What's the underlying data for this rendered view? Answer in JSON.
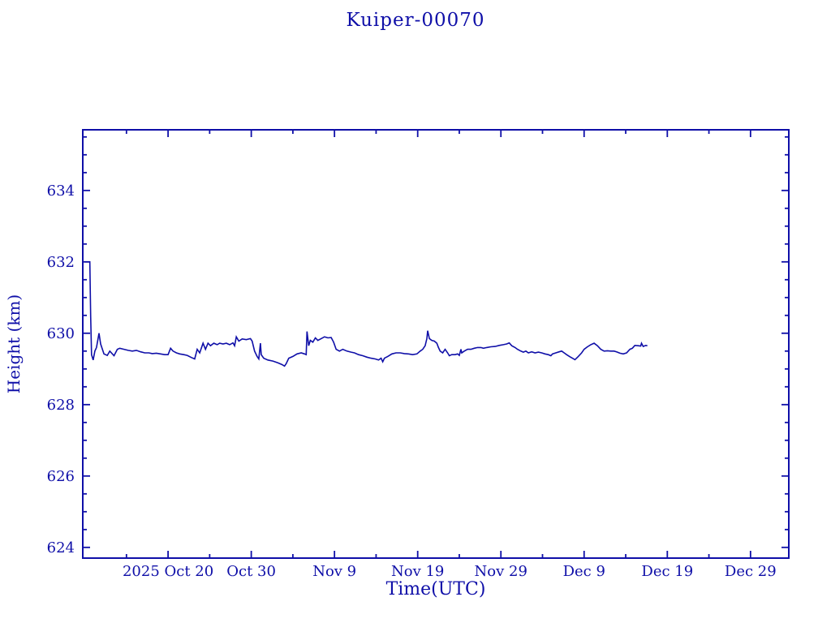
{
  "page": {
    "background": "#ffffff",
    "foreground": "#0f0fa8"
  },
  "chart_data": {
    "type": "line",
    "title": "Kuiper-00070",
    "xlabel": "Time(UTC)",
    "ylabel": "Height (km)",
    "x_unit": "days since 2025-10-10 00:00 UTC",
    "xlim": [
      -0.25,
      84.6
    ],
    "ylim": [
      623.7,
      635.7
    ],
    "grid": false,
    "legend": "none",
    "axis_color": "#0f0fa8",
    "x_ticks_major": [
      {
        "d": 10,
        "label": "2025 Oct 20"
      },
      {
        "d": 20,
        "label": "Oct 30"
      },
      {
        "d": 30,
        "label": "Nov  9"
      },
      {
        "d": 40,
        "label": "Nov 19"
      },
      {
        "d": 50,
        "label": "Nov 29"
      },
      {
        "d": 60,
        "label": "Dec  9"
      },
      {
        "d": 70,
        "label": "Dec 19"
      },
      {
        "d": 80,
        "label": "Dec 29"
      }
    ],
    "x_ticks_minor": [
      5,
      15,
      25,
      35,
      45,
      55,
      65,
      75
    ],
    "y_ticks_major": [
      {
        "v": 634,
        "label": "634"
      },
      {
        "v": 632,
        "label": "632"
      },
      {
        "v": 630,
        "label": "630"
      },
      {
        "v": 628,
        "label": "628"
      },
      {
        "v": 626,
        "label": "626"
      },
      {
        "v": 624,
        "label": "624"
      }
    ],
    "y_major_step": 2,
    "y_minor_step": 0.5,
    "series": [
      {
        "name": "Kuiper-00070 height",
        "color": "#0f0fa8",
        "points": [
          [
            0.0,
            632.0
          ],
          [
            0.6,
            632.0
          ],
          [
            0.7,
            630.5
          ],
          [
            0.8,
            629.4
          ],
          [
            1.0,
            629.25
          ],
          [
            1.2,
            629.5
          ],
          [
            1.4,
            629.6
          ],
          [
            1.7,
            630.0
          ],
          [
            1.9,
            629.7
          ],
          [
            2.3,
            629.42
          ],
          [
            2.7,
            629.38
          ],
          [
            3.0,
            629.5
          ],
          [
            3.5,
            629.37
          ],
          [
            3.9,
            629.55
          ],
          [
            4.2,
            629.58
          ],
          [
            4.7,
            629.55
          ],
          [
            5.2,
            629.52
          ],
          [
            5.7,
            629.5
          ],
          [
            6.2,
            629.52
          ],
          [
            6.7,
            629.48
          ],
          [
            7.2,
            629.45
          ],
          [
            7.7,
            629.45
          ],
          [
            8.1,
            629.43
          ],
          [
            8.6,
            629.44
          ],
          [
            9.1,
            629.42
          ],
          [
            9.6,
            629.4
          ],
          [
            10.0,
            629.4
          ],
          [
            10.3,
            629.58
          ],
          [
            10.6,
            629.5
          ],
          [
            11.0,
            629.45
          ],
          [
            11.4,
            629.42
          ],
          [
            11.9,
            629.4
          ],
          [
            12.3,
            629.38
          ],
          [
            12.8,
            629.32
          ],
          [
            13.2,
            629.28
          ],
          [
            13.5,
            629.55
          ],
          [
            13.8,
            629.45
          ],
          [
            14.2,
            629.72
          ],
          [
            14.5,
            629.55
          ],
          [
            14.8,
            629.72
          ],
          [
            15.1,
            629.65
          ],
          [
            15.5,
            629.72
          ],
          [
            15.9,
            629.68
          ],
          [
            16.2,
            629.72
          ],
          [
            16.6,
            629.7
          ],
          [
            17.0,
            629.72
          ],
          [
            17.4,
            629.68
          ],
          [
            17.8,
            629.73
          ],
          [
            18.0,
            629.65
          ],
          [
            18.2,
            629.9
          ],
          [
            18.5,
            629.78
          ],
          [
            18.9,
            629.84
          ],
          [
            19.4,
            629.82
          ],
          [
            19.9,
            629.85
          ],
          [
            20.1,
            629.78
          ],
          [
            20.4,
            629.5
          ],
          [
            20.7,
            629.35
          ],
          [
            20.9,
            629.28
          ],
          [
            21.1,
            629.72
          ],
          [
            21.2,
            629.4
          ],
          [
            21.5,
            629.3
          ],
          [
            22.0,
            629.25
          ],
          [
            22.6,
            629.22
          ],
          [
            23.2,
            629.17
          ],
          [
            23.7,
            629.12
          ],
          [
            24.0,
            629.08
          ],
          [
            24.2,
            629.15
          ],
          [
            24.5,
            629.3
          ],
          [
            25.0,
            629.35
          ],
          [
            25.5,
            629.42
          ],
          [
            26.0,
            629.45
          ],
          [
            26.4,
            629.42
          ],
          [
            26.6,
            629.4
          ],
          [
            26.7,
            630.05
          ],
          [
            26.9,
            629.65
          ],
          [
            27.1,
            629.8
          ],
          [
            27.4,
            629.75
          ],
          [
            27.7,
            629.87
          ],
          [
            28.0,
            629.8
          ],
          [
            28.4,
            629.85
          ],
          [
            28.8,
            629.9
          ],
          [
            29.2,
            629.87
          ],
          [
            29.6,
            629.88
          ],
          [
            29.9,
            629.75
          ],
          [
            30.2,
            629.55
          ],
          [
            30.6,
            629.5
          ],
          [
            31.0,
            629.55
          ],
          [
            31.5,
            629.5
          ],
          [
            32.0,
            629.47
          ],
          [
            32.4,
            629.45
          ],
          [
            32.9,
            629.4
          ],
          [
            33.4,
            629.37
          ],
          [
            33.9,
            629.33
          ],
          [
            34.4,
            629.3
          ],
          [
            34.9,
            629.28
          ],
          [
            35.3,
            629.25
          ],
          [
            35.6,
            629.3
          ],
          [
            35.8,
            629.2
          ],
          [
            36.0,
            629.3
          ],
          [
            36.4,
            629.35
          ],
          [
            36.9,
            629.42
          ],
          [
            37.4,
            629.45
          ],
          [
            37.9,
            629.45
          ],
          [
            38.4,
            629.43
          ],
          [
            38.9,
            629.42
          ],
          [
            39.4,
            629.4
          ],
          [
            39.9,
            629.42
          ],
          [
            40.3,
            629.5
          ],
          [
            40.6,
            629.55
          ],
          [
            40.9,
            629.65
          ],
          [
            41.1,
            629.85
          ],
          [
            41.2,
            630.07
          ],
          [
            41.4,
            629.85
          ],
          [
            41.7,
            629.8
          ],
          [
            42.0,
            629.78
          ],
          [
            42.3,
            629.72
          ],
          [
            42.5,
            629.6
          ],
          [
            42.7,
            629.5
          ],
          [
            43.0,
            629.45
          ],
          [
            43.3,
            629.55
          ],
          [
            43.6,
            629.45
          ],
          [
            43.8,
            629.37
          ],
          [
            44.1,
            629.4
          ],
          [
            44.5,
            629.4
          ],
          [
            44.8,
            629.42
          ],
          [
            45.0,
            629.38
          ],
          [
            45.2,
            629.55
          ],
          [
            45.3,
            629.45
          ],
          [
            45.6,
            629.5
          ],
          [
            46.0,
            629.55
          ],
          [
            46.4,
            629.55
          ],
          [
            46.8,
            629.58
          ],
          [
            47.2,
            629.6
          ],
          [
            47.6,
            629.6
          ],
          [
            47.9,
            629.58
          ],
          [
            48.3,
            629.6
          ],
          [
            48.8,
            629.62
          ],
          [
            49.3,
            629.63
          ],
          [
            49.8,
            629.66
          ],
          [
            50.3,
            629.68
          ],
          [
            50.7,
            629.7
          ],
          [
            51.0,
            629.73
          ],
          [
            51.3,
            629.65
          ],
          [
            51.7,
            629.6
          ],
          [
            52.0,
            629.55
          ],
          [
            52.4,
            629.5
          ],
          [
            52.7,
            629.47
          ],
          [
            53.0,
            629.5
          ],
          [
            53.3,
            629.45
          ],
          [
            53.7,
            629.48
          ],
          [
            54.1,
            629.45
          ],
          [
            54.5,
            629.47
          ],
          [
            54.9,
            629.45
          ],
          [
            55.3,
            629.42
          ],
          [
            55.7,
            629.4
          ],
          [
            56.0,
            629.37
          ],
          [
            56.2,
            629.42
          ],
          [
            56.6,
            629.45
          ],
          [
            57.0,
            629.48
          ],
          [
            57.3,
            629.5
          ],
          [
            57.6,
            629.45
          ],
          [
            57.9,
            629.4
          ],
          [
            58.3,
            629.34
          ],
          [
            58.6,
            629.3
          ],
          [
            58.9,
            629.26
          ],
          [
            59.3,
            629.35
          ],
          [
            59.7,
            629.45
          ],
          [
            60.0,
            629.55
          ],
          [
            60.4,
            629.62
          ],
          [
            60.8,
            629.68
          ],
          [
            61.2,
            629.72
          ],
          [
            61.6,
            629.65
          ],
          [
            62.0,
            629.55
          ],
          [
            62.4,
            629.5
          ],
          [
            62.8,
            629.51
          ],
          [
            63.2,
            629.5
          ],
          [
            63.6,
            629.5
          ],
          [
            63.9,
            629.48
          ],
          [
            64.3,
            629.44
          ],
          [
            64.7,
            629.42
          ],
          [
            65.1,
            629.45
          ],
          [
            65.5,
            629.55
          ],
          [
            65.8,
            629.58
          ],
          [
            66.1,
            629.66
          ],
          [
            66.5,
            629.65
          ],
          [
            66.8,
            629.64
          ],
          [
            66.9,
            629.72
          ],
          [
            67.1,
            629.63
          ],
          [
            67.4,
            629.66
          ],
          [
            67.6,
            629.65
          ]
        ]
      }
    ]
  }
}
